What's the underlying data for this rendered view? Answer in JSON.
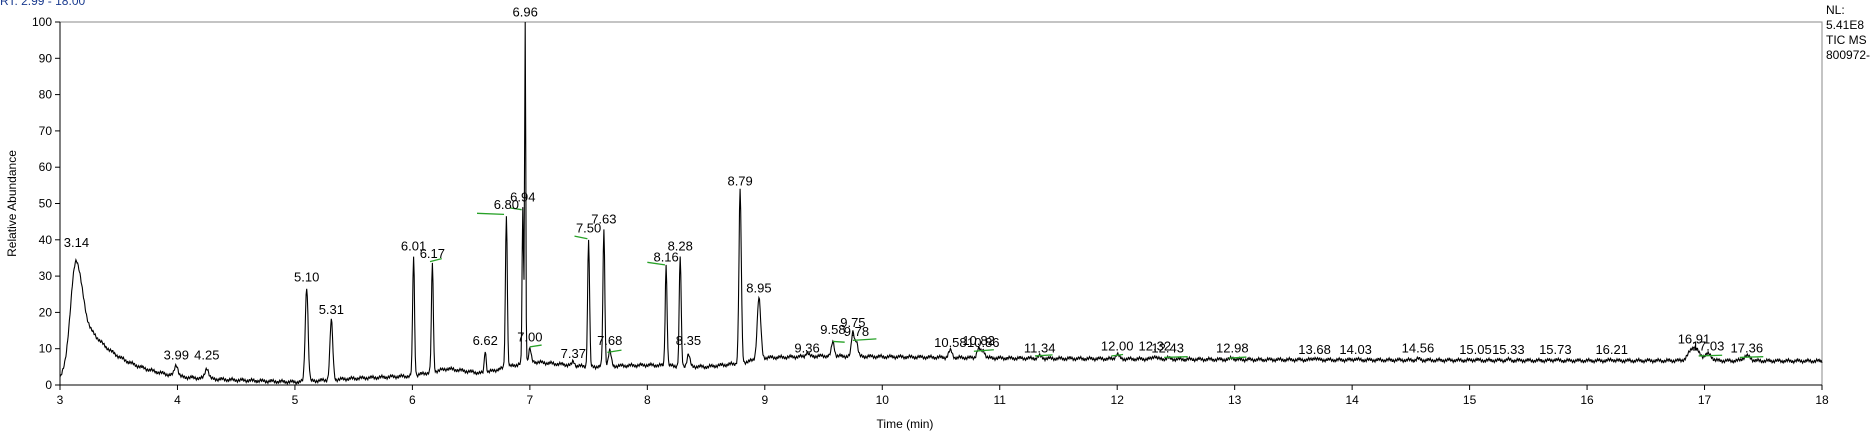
{
  "header": {
    "top_fragment": "RT: 2.99 - 18.00"
  },
  "info": [
    "NL:",
    "5.41E8",
    "TIC MS",
    "800972-"
  ],
  "chart_data": {
    "type": "line",
    "title": "",
    "xlabel": "Time (min)",
    "ylabel": "Relative Abundance",
    "xlim": [
      3,
      18
    ],
    "ylim": [
      0,
      100
    ],
    "x_ticks": [
      3,
      4,
      5,
      6,
      7,
      8,
      9,
      10,
      11,
      12,
      13,
      14,
      15,
      16,
      17,
      18
    ],
    "y_ticks": [
      0,
      10,
      20,
      30,
      40,
      50,
      60,
      70,
      80,
      90,
      100
    ],
    "baseline": [
      [
        3.0,
        1.5
      ],
      [
        3.3,
        4.5
      ],
      [
        4.0,
        1.8
      ],
      [
        5.0,
        0.8
      ],
      [
        5.5,
        1.8
      ],
      [
        6.0,
        2.5
      ],
      [
        6.3,
        4.5
      ],
      [
        6.6,
        3.2
      ],
      [
        7.0,
        6.5
      ],
      [
        7.5,
        5.0
      ],
      [
        8.0,
        5.5
      ],
      [
        8.5,
        5.0
      ],
      [
        8.79,
        6.0
      ],
      [
        9.0,
        7.5
      ],
      [
        9.5,
        8.0
      ],
      [
        10.0,
        7.8
      ],
      [
        11.0,
        7.4
      ],
      [
        12.0,
        7.2
      ],
      [
        13.0,
        7.0
      ],
      [
        14.0,
        6.9
      ],
      [
        15.0,
        6.8
      ],
      [
        16.0,
        6.7
      ],
      [
        17.0,
        6.7
      ],
      [
        18.0,
        6.6
      ]
    ],
    "peaks": [
      {
        "rt": "3.14",
        "x": 3.14,
        "y": 34.5,
        "w": 0.05,
        "tail": 0.25
      },
      {
        "rt": "3.99",
        "x": 3.99,
        "y": 5.0,
        "w": 0.015
      },
      {
        "rt": "4.25",
        "x": 4.25,
        "y": 4.5,
        "w": 0.015
      },
      {
        "rt": "5.10",
        "x": 5.1,
        "y": 27.0,
        "w": 0.012
      },
      {
        "rt": "5.31",
        "x": 5.31,
        "y": 18.0,
        "w": 0.012
      },
      {
        "rt": "6.01",
        "x": 6.01,
        "y": 35.5,
        "w": 0.008
      },
      {
        "rt": "6.17",
        "x": 6.17,
        "y": 33.5,
        "w": 0.008
      },
      {
        "rt": "6.62",
        "x": 6.62,
        "y": 9.5,
        "w": 0.008
      },
      {
        "rt": "6.80",
        "x": 6.8,
        "y": 47.0,
        "w": 0.008
      },
      {
        "rt": "6.94",
        "x": 6.94,
        "y": 48.5,
        "w": 0.006
      },
      {
        "rt": "6.96",
        "x": 6.96,
        "y": 100.0,
        "w": 0.005
      },
      {
        "rt": "7.00",
        "x": 7.0,
        "y": 10.0,
        "w": 0.01
      },
      {
        "rt": "7.37",
        "x": 7.37,
        "y": 6.5,
        "w": 0.01
      },
      {
        "rt": "7.50",
        "x": 7.5,
        "y": 40.0,
        "w": 0.008
      },
      {
        "rt": "7.63",
        "x": 7.63,
        "y": 43.0,
        "w": 0.008
      },
      {
        "rt": "7.68",
        "x": 7.68,
        "y": 9.5,
        "w": 0.012
      },
      {
        "rt": "8.16",
        "x": 8.16,
        "y": 33.0,
        "w": 0.008
      },
      {
        "rt": "8.28",
        "x": 8.28,
        "y": 35.5,
        "w": 0.008
      },
      {
        "rt": "8.35",
        "x": 8.35,
        "y": 8.5,
        "w": 0.012
      },
      {
        "rt": "8.79",
        "x": 8.79,
        "y": 53.5,
        "w": 0.01
      },
      {
        "rt": "8.95",
        "x": 8.95,
        "y": 24.0,
        "w": 0.015
      },
      {
        "rt": "9.36",
        "x": 9.36,
        "y": 9.0,
        "w": 0.012
      },
      {
        "rt": "9.58",
        "x": 9.58,
        "y": 12.0,
        "w": 0.012
      },
      {
        "rt": "9.75",
        "x": 9.75,
        "y": 14.5,
        "w": 0.012
      },
      {
        "rt": "9.78",
        "x": 9.78,
        "y": 12.0,
        "w": 0.012
      },
      {
        "rt": "10.58",
        "x": 10.58,
        "y": 9.5,
        "w": 0.015
      },
      {
        "rt": "10.82",
        "x": 10.82,
        "y": 10.0,
        "w": 0.015
      },
      {
        "rt": "10.86",
        "x": 10.86,
        "y": 9.5,
        "w": 0.015
      },
      {
        "rt": "11.34",
        "x": 11.34,
        "y": 8.0,
        "w": 0.015
      },
      {
        "rt": "12.00",
        "x": 12.0,
        "y": 8.5,
        "w": 0.015
      },
      {
        "rt": "12.32",
        "x": 12.32,
        "y": 8.0,
        "w": 0.015
      },
      {
        "rt": "12.43",
        "x": 12.43,
        "y": 7.5,
        "w": 0.015
      },
      {
        "rt": "12.98",
        "x": 12.98,
        "y": 7.5,
        "w": 0.015
      },
      {
        "rt": "13.68",
        "x": 13.68,
        "y": 7.5,
        "w": 0.015
      },
      {
        "rt": "14.03",
        "x": 14.03,
        "y": 7.2,
        "w": 0.015
      },
      {
        "rt": "14.56",
        "x": 14.56,
        "y": 7.2,
        "w": 0.015
      },
      {
        "rt": "15.05",
        "x": 15.05,
        "y": 7.0,
        "w": 0.015
      },
      {
        "rt": "15.33",
        "x": 15.33,
        "y": 7.0,
        "w": 0.015
      },
      {
        "rt": "15.73",
        "x": 15.73,
        "y": 7.0,
        "w": 0.015
      },
      {
        "rt": "16.21",
        "x": 16.21,
        "y": 7.0,
        "w": 0.015
      },
      {
        "rt": "16.91",
        "x": 16.91,
        "y": 10.5,
        "w": 0.04
      },
      {
        "rt": "17.03",
        "x": 17.03,
        "y": 8.5,
        "w": 0.03
      },
      {
        "rt": "17.36",
        "x": 17.36,
        "y": 8.0,
        "w": 0.03
      }
    ],
    "label_positions": {
      "3.14": 38,
      "3.99": 7,
      "4.25": 7,
      "5.10": 28.5,
      "5.31": 19.5,
      "6.01": 37,
      "6.17": 35,
      "6.62": 11,
      "6.80": 48.5,
      "6.94": 50.5,
      "6.96": 101.5,
      "7.00": 12,
      "7.37": 7.5,
      "7.50": 42,
      "7.63": 44.5,
      "7.68": 11,
      "8.16": 34,
      "8.28": 37,
      "8.35": 11,
      "8.79": 55,
      "8.95": 25.5,
      "9.36": 9,
      "9.58": 14,
      "9.75": 16,
      "9.78": 13.5,
      "10.58": 10.5,
      "10.82": 11,
      "10.86": 10.5,
      "11.34": 9,
      "12.00": 9.5,
      "12.32": 9.5,
      "12.43": 9,
      "12.98": 9,
      "13.68": 8.5,
      "14.03": 8.5,
      "14.56": 9,
      "15.05": 8.5,
      "15.33": 8.5,
      "15.73": 8.5,
      "16.21": 8.5,
      "16.91": 11.5,
      "17.03": 9.5,
      "17.36": 9
    },
    "integration_marks": [
      [
        6.55,
        47.3,
        6.78,
        47.0
      ],
      [
        6.83,
        48.8,
        6.93,
        48.3
      ],
      [
        7.38,
        41.0,
        7.49,
        40.3
      ],
      [
        8.0,
        33.8,
        8.15,
        33.1
      ],
      [
        6.15,
        34.0,
        6.25,
        34.8
      ],
      [
        7.0,
        10.5,
        7.1,
        11.0
      ],
      [
        7.66,
        9.0,
        7.78,
        9.6
      ],
      [
        9.58,
        12.0,
        9.68,
        11.8
      ],
      [
        9.75,
        12.3,
        9.95,
        12.7
      ],
      [
        10.78,
        9.3,
        10.95,
        9.7
      ],
      [
        11.3,
        8.0,
        11.45,
        8.3
      ],
      [
        11.95,
        8.0,
        12.05,
        8.4
      ],
      [
        12.4,
        7.6,
        12.6,
        7.8
      ],
      [
        12.95,
        7.4,
        13.1,
        7.7
      ],
      [
        16.95,
        8.0,
        17.15,
        8.2
      ],
      [
        17.3,
        7.6,
        17.5,
        7.8
      ]
    ]
  }
}
